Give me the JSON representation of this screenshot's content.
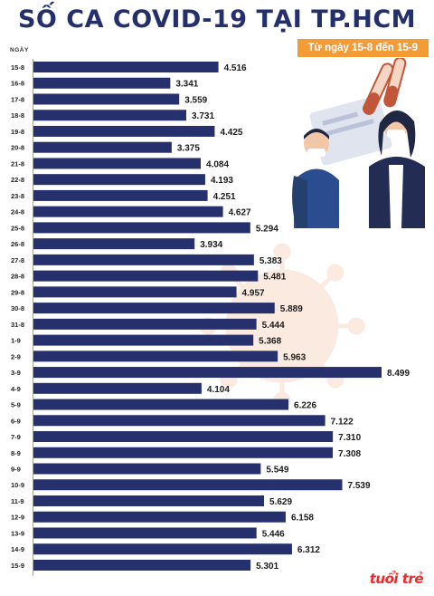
{
  "header": {
    "title": "SỐ CA COVID-19 TẠI TP.HCM",
    "date_range": "Từ ngày 15-8 đến 15-9",
    "axis_caption": "NGÀY"
  },
  "colors": {
    "bar": "#26306c",
    "title": "#24306b",
    "badge": "#f39c36",
    "virus_watermark": "#fbeadf",
    "logo": "#e62e2d"
  },
  "logo_text": "tuổi trẻ",
  "chart_data": {
    "type": "bar",
    "orientation": "horizontal",
    "title": "SỐ CA COVID-19 TẠI TP.HCM",
    "subtitle": "Từ ngày 15-8 đến 15-9",
    "ylabel": "NGÀY",
    "xlim": [
      0,
      8499
    ],
    "grid": false,
    "categories": [
      "15-8",
      "16-8",
      "17-8",
      "18-8",
      "19-8",
      "20-8",
      "21-8",
      "22-8",
      "23-8",
      "24-8",
      "25-8",
      "26-8",
      "27-8",
      "28-8",
      "29-8",
      "30-8",
      "31-8",
      "1-9",
      "2-9",
      "3-9",
      "4-9",
      "5-9",
      "6-9",
      "7-9",
      "8-9",
      "9-9",
      "10-9",
      "11-9",
      "12-9",
      "13-9",
      "14-9",
      "15-9"
    ],
    "values": [
      4516,
      3341,
      3559,
      3731,
      4425,
      3375,
      4084,
      4193,
      4251,
      4627,
      5294,
      3934,
      5383,
      5481,
      4957,
      5889,
      5444,
      5368,
      5963,
      8499,
      4104,
      6226,
      7122,
      7310,
      7308,
      5549,
      7539,
      5629,
      6158,
      5446,
      6312,
      5301
    ],
    "value_labels": [
      "4.516",
      "3.341",
      "3.559",
      "3.731",
      "4.425",
      "3.375",
      "4.084",
      "4.193",
      "4.251",
      "4.627",
      "5.294",
      "3.934",
      "5.383",
      "5.481",
      "4.957",
      "5.889",
      "5.444",
      "5.368",
      "5.963",
      "8.499",
      "4.104",
      "6.226",
      "7.122",
      "7.310",
      "7.308",
      "5.549",
      "7.539",
      "5.629",
      "6.158",
      "5.446",
      "6.312",
      "5.301"
    ]
  }
}
